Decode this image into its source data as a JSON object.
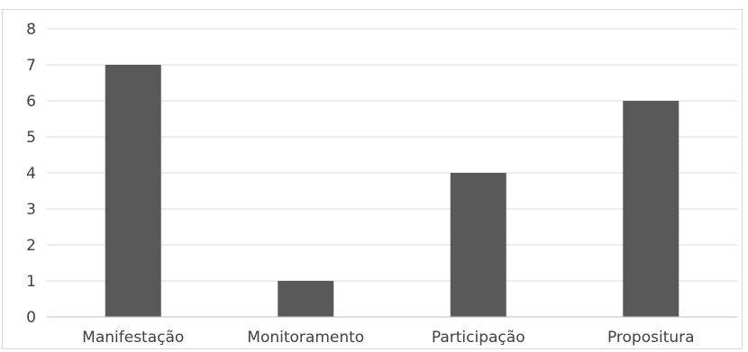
{
  "chart_data": {
    "type": "bar",
    "title": "",
    "xlabel": "",
    "ylabel": "",
    "categories": [
      "Manifestação",
      "Monitoramento",
      "Participação",
      "Propositura"
    ],
    "values": [
      7,
      1,
      4,
      6
    ],
    "ylim": [
      0,
      8
    ],
    "yticks": [
      0,
      1,
      2,
      3,
      4,
      5,
      6,
      7,
      8
    ],
    "grid": true,
    "legend": "none",
    "bar_color": "#595959",
    "grid_color": "#d9d9d9",
    "axis_color": "#bfbfbf",
    "text_color": "#404040"
  }
}
